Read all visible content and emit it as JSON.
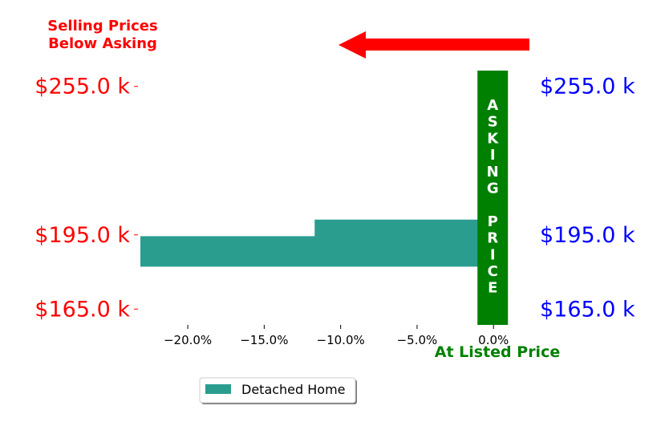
{
  "header": {
    "line1": "Selling Prices",
    "line2": "Below Asking"
  },
  "asking_price_label": [
    "A",
    "S",
    "K",
    "I",
    "N",
    "G",
    "",
    "P",
    "R",
    "I",
    "C",
    "E"
  ],
  "footer_label": "At Listed Price",
  "colors": {
    "header": "#ff0000",
    "arrow": "#ff0000",
    "left_ticks": "#ff0000",
    "right_ticks": "#0000ff",
    "bars": "#2a9d8f",
    "asking_band": "#008000",
    "footer": "#008000"
  },
  "chart_data": {
    "type": "bar",
    "orientation": "horizontal",
    "series": [
      {
        "name": "Detached Home",
        "values": [
          -11.7,
          -23.1
        ]
      }
    ],
    "y_positions_k": [
      195.0,
      188.3
    ],
    "ylim_k": [
      158.6,
      261.4
    ],
    "xlim": [
      -23.1,
      1.3
    ],
    "x_ticks": [
      {
        "value": -20,
        "label": "−20.0%"
      },
      {
        "value": -15,
        "label": "−15.0%"
      },
      {
        "value": -10,
        "label": "−10.0%"
      },
      {
        "value": -5,
        "label": "−5.0%"
      },
      {
        "value": 0,
        "label": "0.0%"
      }
    ],
    "y_ticks_left": [
      {
        "value": 255.0,
        "label": "$255.0 k"
      },
      {
        "value": 195.0,
        "label": "$195.0 k"
      },
      {
        "value": 165.0,
        "label": "$165.0 k"
      }
    ],
    "y_ticks_right": [
      {
        "value": 255.0,
        "label": "$255.0 k"
      },
      {
        "value": 195.0,
        "label": "$195.0 k"
      },
      {
        "value": 165.0,
        "label": "$165.0 k"
      }
    ],
    "legend": {
      "placement": "bottom-center",
      "entries": [
        "Detached Home"
      ]
    },
    "grid": false
  }
}
